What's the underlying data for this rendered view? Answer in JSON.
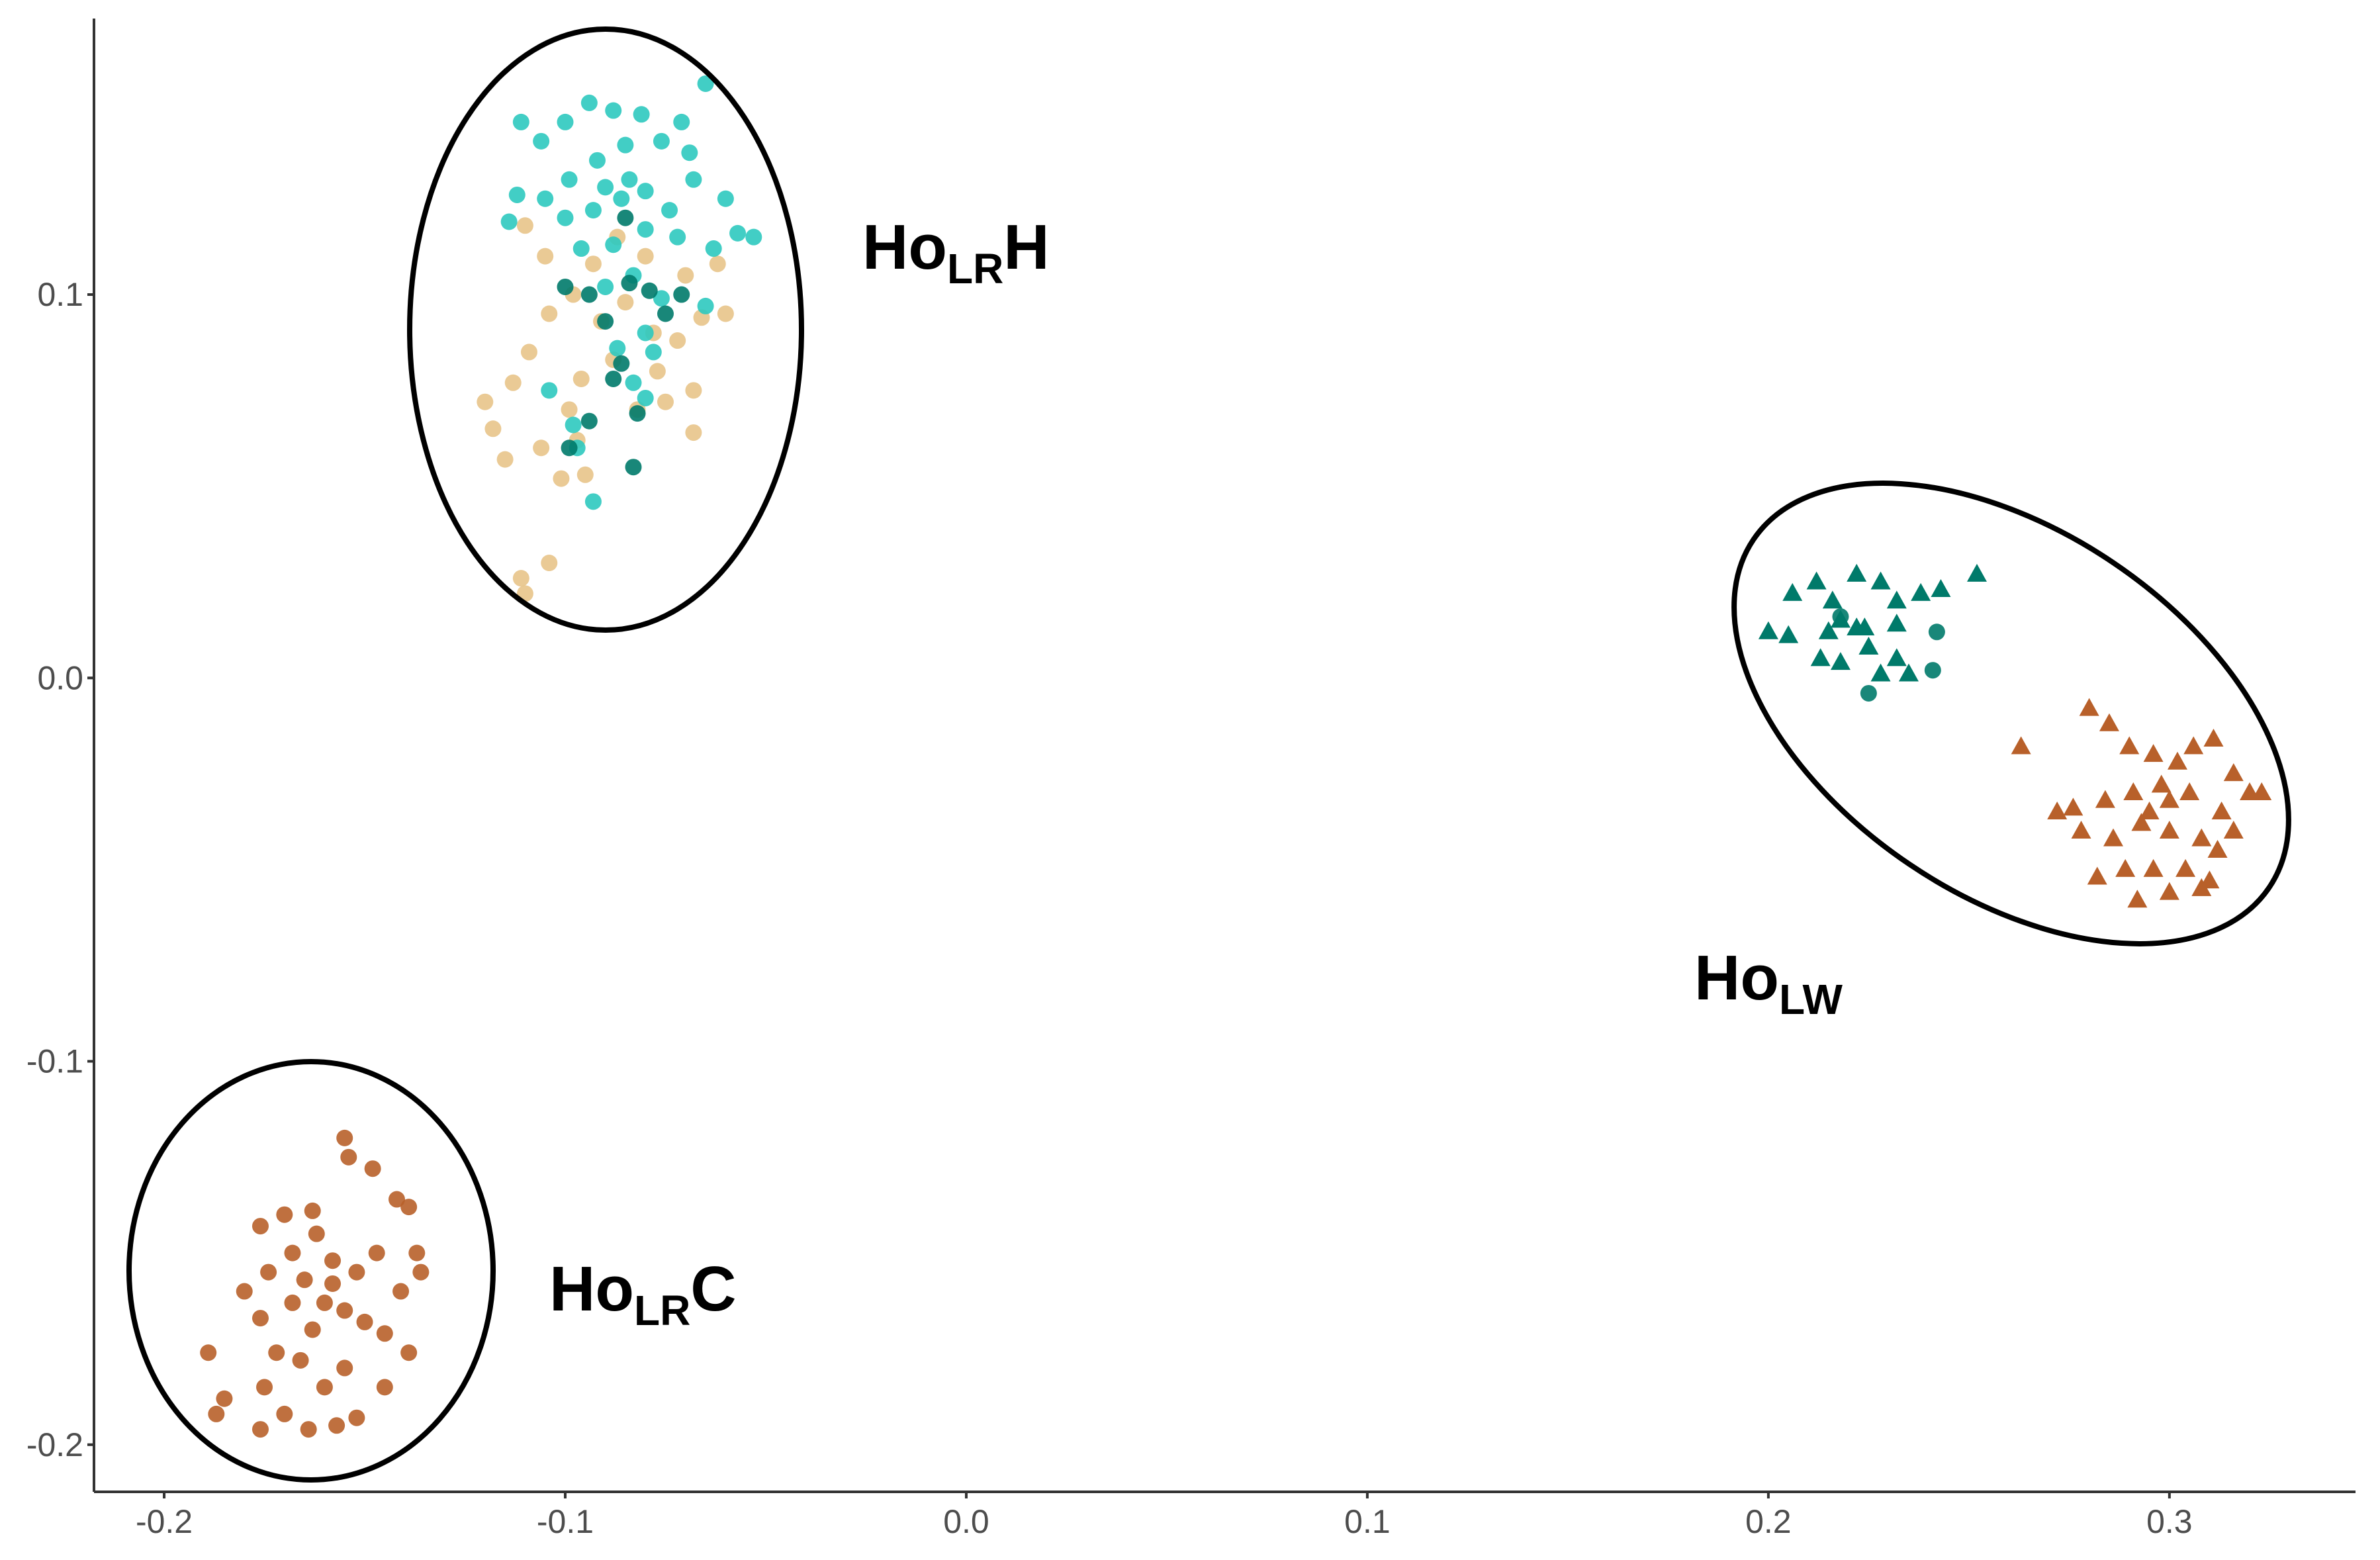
{
  "chart_data": {
    "type": "scatter",
    "xlim": [
      -0.2175,
      0.3464
    ],
    "ylim": [
      -0.2123,
      0.172
    ],
    "xticks": [
      -0.2,
      -0.1,
      {
        "value": 0,
        "label": "0.0"
      },
      0.1,
      0.2,
      0.3
    ],
    "yticks": [
      -0.2,
      -0.1,
      {
        "value": 0,
        "label": "0.0"
      },
      0.1
    ],
    "grid": false,
    "annotations": [
      {
        "base": "Ho",
        "sub": "LR",
        "suffix": "H"
      },
      {
        "base": "Ho",
        "sub": "LW"
      },
      {
        "base": "Ho",
        "sub": "LR",
        "suffix": "C"
      }
    ],
    "series": [
      {
        "color": "#e8c48a",
        "marker": "circle",
        "x": [
          -0.113,
          -0.118,
          -0.109,
          -0.104,
          -0.098,
          -0.091,
          -0.085,
          -0.078,
          -0.072,
          -0.066,
          -0.06,
          -0.068,
          -0.075,
          -0.082,
          -0.099,
          -0.106,
          -0.115,
          -0.101,
          -0.097,
          -0.104,
          -0.11,
          -0.111,
          -0.088,
          -0.093,
          -0.087,
          -0.08,
          -0.07,
          -0.062,
          -0.105,
          -0.11,
          -0.096,
          -0.077,
          -0.068,
          -0.12,
          -0.095
        ],
        "values": [
          0.077,
          0.065,
          0.085,
          0.095,
          0.1,
          0.093,
          0.098,
          0.09,
          0.088,
          0.094,
          0.095,
          0.075,
          0.072,
          0.07,
          0.07,
          0.06,
          0.057,
          0.052,
          0.062,
          0.03,
          0.022,
          0.026,
          0.083,
          0.108,
          0.115,
          0.11,
          0.105,
          0.108,
          0.11,
          0.118,
          0.078,
          0.08,
          0.064,
          0.072,
          0.053
        ]
      },
      {
        "color": "#2ec9bf",
        "marker": "circle",
        "x": [
          -0.111,
          -0.106,
          -0.1,
          -0.094,
          -0.088,
          -0.081,
          -0.071,
          -0.065,
          -0.069,
          -0.076,
          -0.085,
          -0.092,
          -0.099,
          -0.105,
          -0.112,
          -0.114,
          -0.1,
          -0.093,
          -0.086,
          -0.08,
          -0.074,
          -0.068,
          -0.06,
          -0.053,
          -0.057,
          -0.063,
          -0.072,
          -0.08,
          -0.088,
          -0.096,
          -0.09,
          -0.083,
          -0.076,
          -0.08,
          -0.087,
          -0.078,
          -0.083,
          -0.098,
          -0.104,
          -0.097,
          -0.093,
          -0.08,
          -0.065,
          -0.09,
          -0.084
        ],
        "values": [
          0.145,
          0.14,
          0.145,
          0.15,
          0.148,
          0.147,
          0.145,
          0.155,
          0.137,
          0.14,
          0.139,
          0.135,
          0.13,
          0.125,
          0.126,
          0.119,
          0.12,
          0.122,
          0.125,
          0.127,
          0.122,
          0.13,
          0.125,
          0.115,
          0.116,
          0.112,
          0.115,
          0.117,
          0.113,
          0.112,
          0.102,
          0.105,
          0.099,
          0.09,
          0.086,
          0.085,
          0.077,
          0.066,
          0.075,
          0.06,
          0.046,
          0.073,
          0.097,
          0.128,
          0.13
        ]
      },
      {
        "color": "#007a6a",
        "marker": "circle",
        "x": [
          -0.1,
          -0.094,
          -0.09,
          -0.084,
          -0.079,
          -0.086,
          -0.088,
          -0.094,
          -0.082,
          -0.083,
          -0.099,
          -0.071,
          -0.075,
          -0.085,
          0.242,
          0.241,
          0.225,
          0.218
        ],
        "values": [
          0.102,
          0.1,
          0.093,
          0.103,
          0.101,
          0.082,
          0.078,
          0.067,
          0.069,
          0.055,
          0.06,
          0.1,
          0.095,
          0.12,
          0.012,
          0.002,
          -0.004,
          0.016
        ]
      },
      {
        "color": "#007a6a",
        "marker": "triangle",
        "x": [
          0.2,
          0.206,
          0.212,
          0.216,
          0.222,
          0.228,
          0.232,
          0.238,
          0.243,
          0.252,
          0.218,
          0.222,
          0.215,
          0.205,
          0.213,
          0.218,
          0.225,
          0.232,
          0.235,
          0.228,
          0.224,
          0.232
        ],
        "values": [
          0.012,
          0.022,
          0.025,
          0.02,
          0.027,
          0.025,
          0.02,
          0.022,
          0.023,
          0.027,
          0.015,
          0.013,
          0.012,
          0.011,
          0.005,
          0.004,
          0.008,
          0.005,
          0.001,
          0.001,
          0.013,
          0.014
        ]
      },
      {
        "color": "#b8602a",
        "marker": "circle",
        "x": [
          -0.176,
          -0.17,
          -0.163,
          -0.155,
          -0.154,
          -0.148,
          -0.142,
          -0.139,
          -0.137,
          -0.136,
          -0.141,
          -0.139,
          -0.145,
          -0.15,
          -0.155,
          -0.16,
          -0.166,
          -0.172,
          -0.176,
          -0.18,
          -0.174,
          -0.168,
          -0.162,
          -0.158,
          -0.152,
          -0.147,
          -0.16,
          -0.155,
          -0.163,
          -0.168,
          -0.158,
          -0.165,
          -0.189,
          -0.185,
          -0.187,
          -0.176,
          -0.17,
          -0.164,
          -0.157,
          -0.152,
          -0.175,
          -0.145
        ],
        "values": [
          -0.143,
          -0.14,
          -0.139,
          -0.12,
          -0.125,
          -0.128,
          -0.136,
          -0.138,
          -0.15,
          -0.155,
          -0.16,
          -0.176,
          -0.171,
          -0.168,
          -0.18,
          -0.185,
          -0.178,
          -0.176,
          -0.167,
          -0.16,
          -0.155,
          -0.15,
          -0.145,
          -0.152,
          -0.155,
          -0.15,
          -0.163,
          -0.165,
          -0.17,
          -0.163,
          -0.158,
          -0.157,
          -0.176,
          -0.188,
          -0.192,
          -0.196,
          -0.192,
          -0.196,
          -0.195,
          -0.193,
          -0.185,
          -0.185
        ]
      },
      {
        "color": "#b8602a",
        "marker": "triangle",
        "x": [
          0.263,
          0.28,
          0.285,
          0.29,
          0.296,
          0.302,
          0.306,
          0.311,
          0.316,
          0.32,
          0.323,
          0.313,
          0.305,
          0.298,
          0.291,
          0.284,
          0.276,
          0.272,
          0.278,
          0.286,
          0.293,
          0.3,
          0.308,
          0.312,
          0.316,
          0.304,
          0.296,
          0.289,
          0.282,
          0.3,
          0.308,
          0.31,
          0.292,
          0.3,
          0.295
        ],
        "values": [
          -0.018,
          -0.008,
          -0.012,
          -0.018,
          -0.02,
          -0.022,
          -0.018,
          -0.016,
          -0.025,
          -0.03,
          -0.03,
          -0.035,
          -0.03,
          -0.028,
          -0.03,
          -0.032,
          -0.034,
          -0.035,
          -0.04,
          -0.042,
          -0.038,
          -0.04,
          -0.042,
          -0.045,
          -0.04,
          -0.05,
          -0.05,
          -0.05,
          -0.052,
          -0.056,
          -0.055,
          -0.053,
          -0.058,
          -0.032,
          -0.035
        ]
      }
    ]
  }
}
